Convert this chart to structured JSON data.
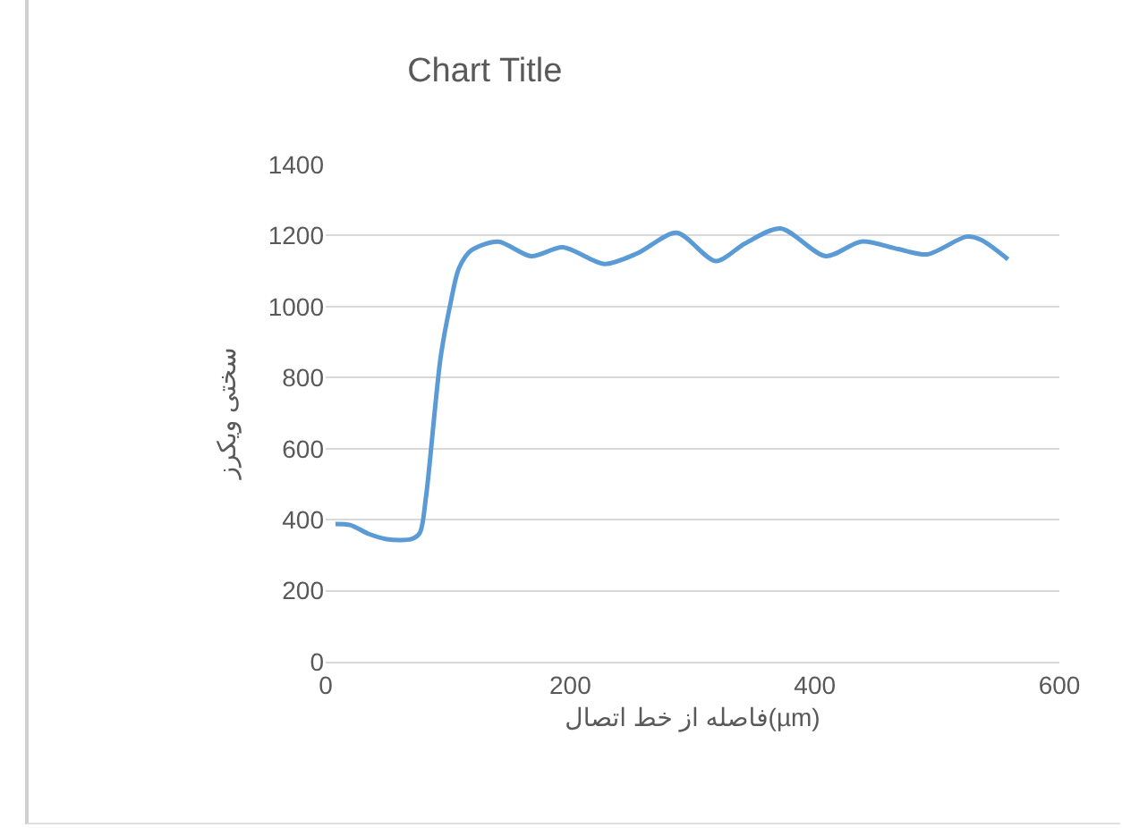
{
  "chart_data": {
    "type": "line",
    "title": "Chart Title",
    "xlabel": "فاصله از خط اتصال(µm)",
    "ylabel": "سختی ویکرز",
    "x": [
      8,
      20,
      35,
      50,
      70,
      77,
      82,
      94,
      102,
      109,
      119,
      141,
      168,
      194,
      228,
      255,
      287,
      319,
      343,
      372,
      409,
      438,
      468,
      492,
      524,
      536,
      558
    ],
    "series": [
      {
        "color": "#5b9bd5",
        "values": [
          388,
          385,
          360,
          345,
          345,
          363,
          463,
          857,
          1008,
          1108,
          1158,
          1183,
          1142,
          1167,
          1120,
          1150,
          1208,
          1128,
          1178,
          1220,
          1142,
          1183,
          1162,
          1147,
          1197,
          1188,
          1133
        ]
      }
    ],
    "xlim": [
      0,
      600
    ],
    "xticks": [
      0,
      200,
      400,
      600
    ],
    "ylim": [
      0,
      1400
    ],
    "yticks": [
      0,
      200,
      400,
      600,
      800,
      1000,
      1200,
      1400
    ],
    "grid": "y",
    "marker": "none",
    "line_style": "solid"
  }
}
